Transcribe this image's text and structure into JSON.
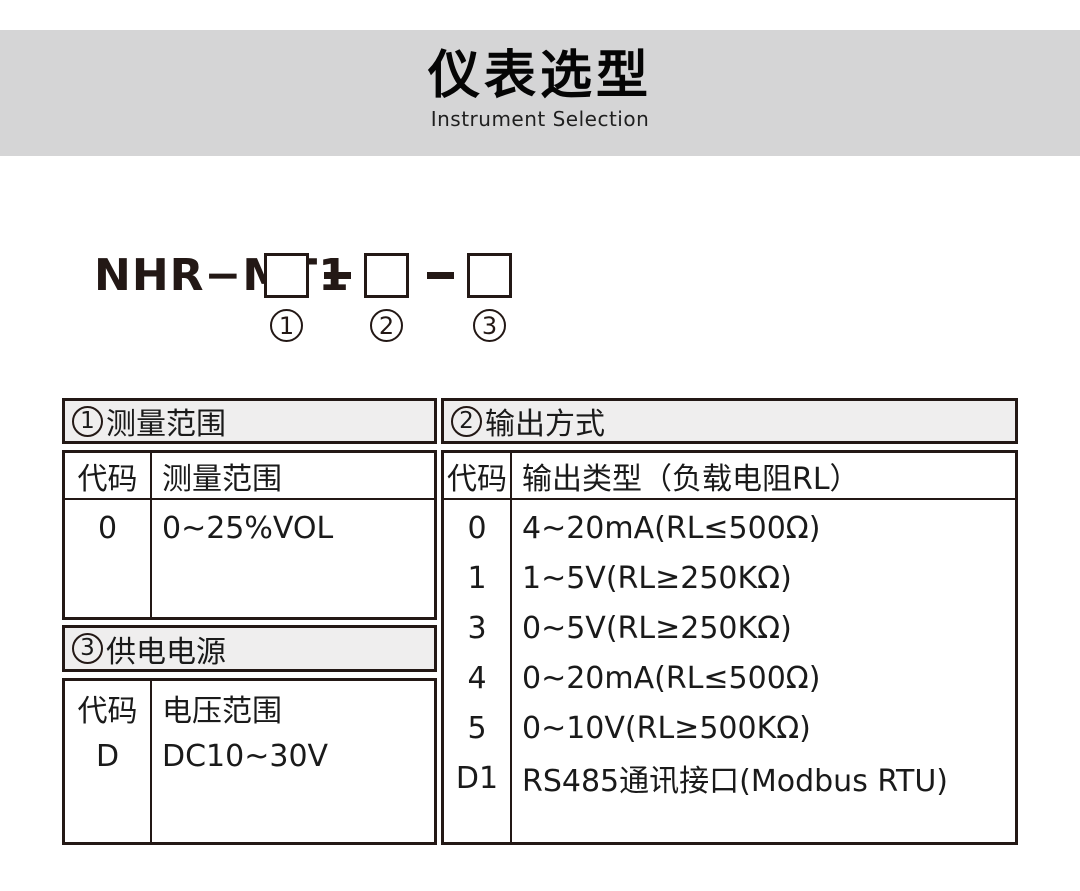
{
  "page": {
    "title": "仪表选型",
    "subtitle": "Instrument Selection"
  },
  "model": {
    "prefix": "NHR−MT1",
    "slots": [
      {
        "number": "1"
      },
      {
        "number": "2"
      },
      {
        "number": "3"
      }
    ]
  },
  "sections": [
    {
      "number": "1",
      "title": "测量范围",
      "columns": [
        "代码",
        "测量范围"
      ],
      "rows": [
        [
          "0",
          "0~25%VOL"
        ]
      ]
    },
    {
      "number": "2",
      "title": "输出方式",
      "columns": [
        "代码",
        "输出类型（负载电阻RL）"
      ],
      "rows": [
        [
          "0",
          "4~20mA(RL≤500Ω)"
        ],
        [
          "1",
          "1~5V(RL≥250KΩ)"
        ],
        [
          "3",
          "0~5V(RL≥250KΩ)"
        ],
        [
          "4",
          "0~20mA(RL≤500Ω)"
        ],
        [
          "5",
          "0~10V(RL≥500KΩ)"
        ],
        [
          "D1",
          "RS485通讯接口(Modbus RTU)"
        ]
      ]
    },
    {
      "number": "3",
      "title": "供电电源",
      "columns": [
        "代码",
        "电压范围"
      ],
      "rows": [
        [
          "D",
          "DC10~30V"
        ]
      ]
    }
  ],
  "colors": {
    "band_bg": "#d5d5d6",
    "section_header_bg": "#efeeee",
    "border": "#231815",
    "text": "#1a1a1a"
  }
}
